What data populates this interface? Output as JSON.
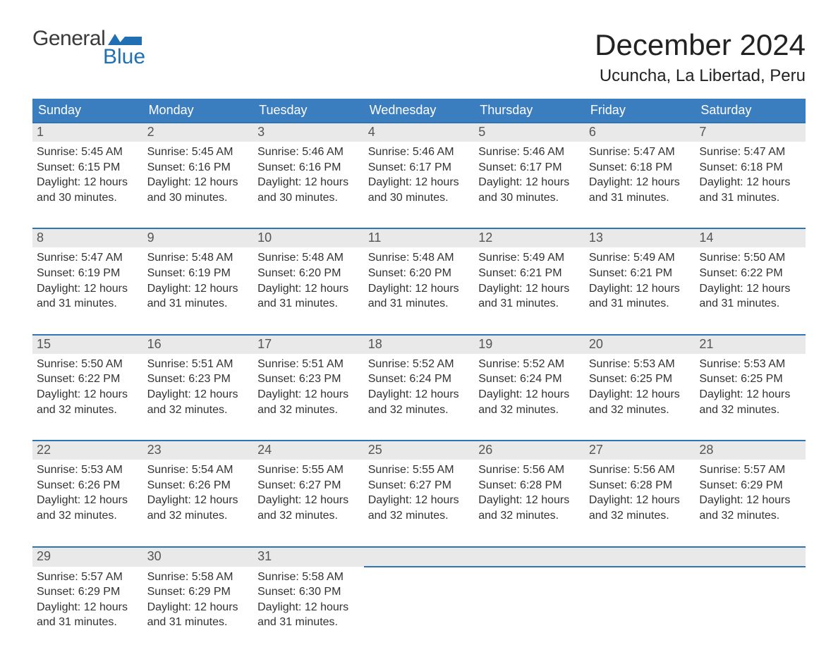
{
  "brand": {
    "line1": "General",
    "line2": "Blue",
    "logo_color": "#1f6fb2"
  },
  "header": {
    "title": "December 2024",
    "location": "Ucuncha, La Libertad, Peru"
  },
  "theme": {
    "header_bg": "#3b7ec0",
    "header_text": "#ffffff",
    "row_border": "#2f74b5",
    "daynum_bg": "#e9e9e9",
    "body_bg": "#ffffff",
    "text_color": "#323232",
    "title_color": "#222222",
    "font_family": "Arial, Helvetica, sans-serif",
    "title_fontsize_pt": 32,
    "subtitle_fontsize_pt": 18,
    "dayheader_fontsize_pt": 14,
    "body_fontsize_pt": 12
  },
  "calendar": {
    "day_headers": [
      "Sunday",
      "Monday",
      "Tuesday",
      "Wednesday",
      "Thursday",
      "Friday",
      "Saturday"
    ],
    "weeks": [
      [
        {
          "day": "1",
          "sunrise": "Sunrise: 5:45 AM",
          "sunset": "Sunset: 6:15 PM",
          "daylight1": "Daylight: 12 hours",
          "daylight2": "and 30 minutes."
        },
        {
          "day": "2",
          "sunrise": "Sunrise: 5:45 AM",
          "sunset": "Sunset: 6:16 PM",
          "daylight1": "Daylight: 12 hours",
          "daylight2": "and 30 minutes."
        },
        {
          "day": "3",
          "sunrise": "Sunrise: 5:46 AM",
          "sunset": "Sunset: 6:16 PM",
          "daylight1": "Daylight: 12 hours",
          "daylight2": "and 30 minutes."
        },
        {
          "day": "4",
          "sunrise": "Sunrise: 5:46 AM",
          "sunset": "Sunset: 6:17 PM",
          "daylight1": "Daylight: 12 hours",
          "daylight2": "and 30 minutes."
        },
        {
          "day": "5",
          "sunrise": "Sunrise: 5:46 AM",
          "sunset": "Sunset: 6:17 PM",
          "daylight1": "Daylight: 12 hours",
          "daylight2": "and 30 minutes."
        },
        {
          "day": "6",
          "sunrise": "Sunrise: 5:47 AM",
          "sunset": "Sunset: 6:18 PM",
          "daylight1": "Daylight: 12 hours",
          "daylight2": "and 31 minutes."
        },
        {
          "day": "7",
          "sunrise": "Sunrise: 5:47 AM",
          "sunset": "Sunset: 6:18 PM",
          "daylight1": "Daylight: 12 hours",
          "daylight2": "and 31 minutes."
        }
      ],
      [
        {
          "day": "8",
          "sunrise": "Sunrise: 5:47 AM",
          "sunset": "Sunset: 6:19 PM",
          "daylight1": "Daylight: 12 hours",
          "daylight2": "and 31 minutes."
        },
        {
          "day": "9",
          "sunrise": "Sunrise: 5:48 AM",
          "sunset": "Sunset: 6:19 PM",
          "daylight1": "Daylight: 12 hours",
          "daylight2": "and 31 minutes."
        },
        {
          "day": "10",
          "sunrise": "Sunrise: 5:48 AM",
          "sunset": "Sunset: 6:20 PM",
          "daylight1": "Daylight: 12 hours",
          "daylight2": "and 31 minutes."
        },
        {
          "day": "11",
          "sunrise": "Sunrise: 5:48 AM",
          "sunset": "Sunset: 6:20 PM",
          "daylight1": "Daylight: 12 hours",
          "daylight2": "and 31 minutes."
        },
        {
          "day": "12",
          "sunrise": "Sunrise: 5:49 AM",
          "sunset": "Sunset: 6:21 PM",
          "daylight1": "Daylight: 12 hours",
          "daylight2": "and 31 minutes."
        },
        {
          "day": "13",
          "sunrise": "Sunrise: 5:49 AM",
          "sunset": "Sunset: 6:21 PM",
          "daylight1": "Daylight: 12 hours",
          "daylight2": "and 31 minutes."
        },
        {
          "day": "14",
          "sunrise": "Sunrise: 5:50 AM",
          "sunset": "Sunset: 6:22 PM",
          "daylight1": "Daylight: 12 hours",
          "daylight2": "and 31 minutes."
        }
      ],
      [
        {
          "day": "15",
          "sunrise": "Sunrise: 5:50 AM",
          "sunset": "Sunset: 6:22 PM",
          "daylight1": "Daylight: 12 hours",
          "daylight2": "and 32 minutes."
        },
        {
          "day": "16",
          "sunrise": "Sunrise: 5:51 AM",
          "sunset": "Sunset: 6:23 PM",
          "daylight1": "Daylight: 12 hours",
          "daylight2": "and 32 minutes."
        },
        {
          "day": "17",
          "sunrise": "Sunrise: 5:51 AM",
          "sunset": "Sunset: 6:23 PM",
          "daylight1": "Daylight: 12 hours",
          "daylight2": "and 32 minutes."
        },
        {
          "day": "18",
          "sunrise": "Sunrise: 5:52 AM",
          "sunset": "Sunset: 6:24 PM",
          "daylight1": "Daylight: 12 hours",
          "daylight2": "and 32 minutes."
        },
        {
          "day": "19",
          "sunrise": "Sunrise: 5:52 AM",
          "sunset": "Sunset: 6:24 PM",
          "daylight1": "Daylight: 12 hours",
          "daylight2": "and 32 minutes."
        },
        {
          "day": "20",
          "sunrise": "Sunrise: 5:53 AM",
          "sunset": "Sunset: 6:25 PM",
          "daylight1": "Daylight: 12 hours",
          "daylight2": "and 32 minutes."
        },
        {
          "day": "21",
          "sunrise": "Sunrise: 5:53 AM",
          "sunset": "Sunset: 6:25 PM",
          "daylight1": "Daylight: 12 hours",
          "daylight2": "and 32 minutes."
        }
      ],
      [
        {
          "day": "22",
          "sunrise": "Sunrise: 5:53 AM",
          "sunset": "Sunset: 6:26 PM",
          "daylight1": "Daylight: 12 hours",
          "daylight2": "and 32 minutes."
        },
        {
          "day": "23",
          "sunrise": "Sunrise: 5:54 AM",
          "sunset": "Sunset: 6:26 PM",
          "daylight1": "Daylight: 12 hours",
          "daylight2": "and 32 minutes."
        },
        {
          "day": "24",
          "sunrise": "Sunrise: 5:55 AM",
          "sunset": "Sunset: 6:27 PM",
          "daylight1": "Daylight: 12 hours",
          "daylight2": "and 32 minutes."
        },
        {
          "day": "25",
          "sunrise": "Sunrise: 5:55 AM",
          "sunset": "Sunset: 6:27 PM",
          "daylight1": "Daylight: 12 hours",
          "daylight2": "and 32 minutes."
        },
        {
          "day": "26",
          "sunrise": "Sunrise: 5:56 AM",
          "sunset": "Sunset: 6:28 PM",
          "daylight1": "Daylight: 12 hours",
          "daylight2": "and 32 minutes."
        },
        {
          "day": "27",
          "sunrise": "Sunrise: 5:56 AM",
          "sunset": "Sunset: 6:28 PM",
          "daylight1": "Daylight: 12 hours",
          "daylight2": "and 32 minutes."
        },
        {
          "day": "28",
          "sunrise": "Sunrise: 5:57 AM",
          "sunset": "Sunset: 6:29 PM",
          "daylight1": "Daylight: 12 hours",
          "daylight2": "and 32 minutes."
        }
      ],
      [
        {
          "day": "29",
          "sunrise": "Sunrise: 5:57 AM",
          "sunset": "Sunset: 6:29 PM",
          "daylight1": "Daylight: 12 hours",
          "daylight2": "and 31 minutes."
        },
        {
          "day": "30",
          "sunrise": "Sunrise: 5:58 AM",
          "sunset": "Sunset: 6:29 PM",
          "daylight1": "Daylight: 12 hours",
          "daylight2": "and 31 minutes."
        },
        {
          "day": "31",
          "sunrise": "Sunrise: 5:58 AM",
          "sunset": "Sunset: 6:30 PM",
          "daylight1": "Daylight: 12 hours",
          "daylight2": "and 31 minutes."
        },
        null,
        null,
        null,
        null
      ]
    ]
  }
}
